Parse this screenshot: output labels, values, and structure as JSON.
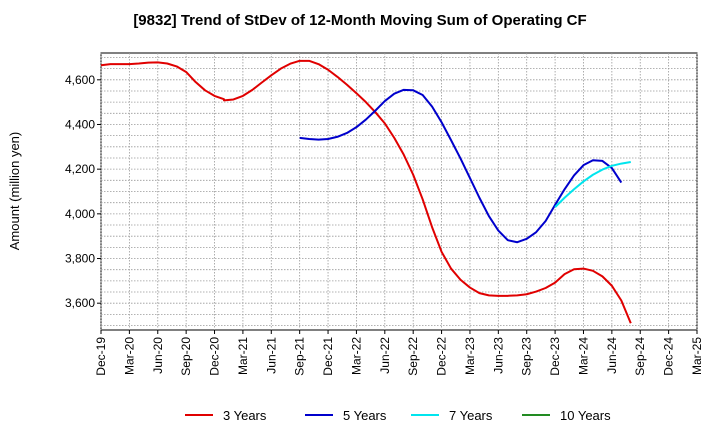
{
  "chart_data": {
    "type": "line",
    "title": "[9832]  Trend of StDev of 12-Month Moving Sum of Operating CF",
    "xlabel": "",
    "ylabel": "Amount (million yen)",
    "ylim": [
      3480,
      4720
    ],
    "yticks": [
      3600,
      3800,
      4000,
      4200,
      4400,
      4600
    ],
    "ytick_labels": [
      "3,600",
      "3,800",
      "4,000",
      "4,200",
      "4,400",
      "4,600"
    ],
    "x_start": "2019-12",
    "x_end": "2025-03",
    "xtick_labels": [
      "Dec-19",
      "Mar-20",
      "Jun-20",
      "Sep-20",
      "Dec-20",
      "Mar-21",
      "Jun-21",
      "Sep-21",
      "Dec-21",
      "Mar-22",
      "Jun-22",
      "Sep-22",
      "Dec-22",
      "Mar-23",
      "Jun-23",
      "Sep-23",
      "Dec-23",
      "Mar-24",
      "Jun-24",
      "Sep-24",
      "Dec-24",
      "Mar-25"
    ],
    "grid": true,
    "legend_position": "bottom",
    "series": [
      {
        "name": "3 Years",
        "color": "#e00000",
        "points": [
          [
            "2019-12",
            4665
          ],
          [
            "2020-01",
            4670
          ],
          [
            "2020-02",
            4670
          ],
          [
            "2020-03",
            4670
          ],
          [
            "2020-04",
            4673
          ],
          [
            "2020-05",
            4677
          ],
          [
            "2020-06",
            4678
          ],
          [
            "2020-07",
            4673
          ],
          [
            "2020-08",
            4660
          ],
          [
            "2020-09",
            4635
          ],
          [
            "2020-10",
            4590
          ],
          [
            "2020-11",
            4553
          ],
          [
            "2020-12",
            4528
          ],
          [
            "2020-13",
            4513
          ],
          [
            "2021-01",
            4508
          ],
          [
            "2021-02",
            4512
          ],
          [
            "2021-03",
            4528
          ],
          [
            "2021-04",
            4555
          ],
          [
            "2021-05",
            4588
          ],
          [
            "2021-06",
            4620
          ],
          [
            "2021-07",
            4650
          ],
          [
            "2021-08",
            4672
          ],
          [
            "2021-09",
            4685
          ],
          [
            "2021-10",
            4685
          ],
          [
            "2021-11",
            4670
          ],
          [
            "2021-12",
            4645
          ],
          [
            "2022-01",
            4613
          ],
          [
            "2022-02",
            4578
          ],
          [
            "2022-03",
            4540
          ],
          [
            "2022-04",
            4500
          ],
          [
            "2022-05",
            4455
          ],
          [
            "2022-06",
            4405
          ],
          [
            "2022-07",
            4340
          ],
          [
            "2022-08",
            4265
          ],
          [
            "2022-09",
            4175
          ],
          [
            "2022-10",
            4065
          ],
          [
            "2022-11",
            3940
          ],
          [
            "2022-12",
            3830
          ],
          [
            "2023-01",
            3755
          ],
          [
            "2023-02",
            3705
          ],
          [
            "2023-03",
            3670
          ],
          [
            "2023-04",
            3645
          ],
          [
            "2023-05",
            3635
          ],
          [
            "2023-06",
            3633
          ],
          [
            "2023-07",
            3633
          ],
          [
            "2023-08",
            3635
          ],
          [
            "2023-09",
            3640
          ],
          [
            "2023-10",
            3652
          ],
          [
            "2023-11",
            3668
          ],
          [
            "2023-12",
            3692
          ],
          [
            "2024-01",
            3730
          ],
          [
            "2024-02",
            3752
          ],
          [
            "2024-03",
            3755
          ],
          [
            "2024-04",
            3745
          ],
          [
            "2024-05",
            3720
          ],
          [
            "2024-06",
            3678
          ],
          [
            "2024-07",
            3612
          ],
          [
            "2024-08",
            3510
          ]
        ]
      },
      {
        "name": "5 Years",
        "color": "#0000cc",
        "points": [
          [
            "2021-09",
            4340
          ],
          [
            "2021-10",
            4335
          ],
          [
            "2021-11",
            4332
          ],
          [
            "2021-12",
            4335
          ],
          [
            "2022-01",
            4345
          ],
          [
            "2022-02",
            4362
          ],
          [
            "2022-03",
            4388
          ],
          [
            "2022-04",
            4422
          ],
          [
            "2022-05",
            4462
          ],
          [
            "2022-06",
            4505
          ],
          [
            "2022-07",
            4538
          ],
          [
            "2022-08",
            4555
          ],
          [
            "2022-09",
            4553
          ],
          [
            "2022-10",
            4532
          ],
          [
            "2022-11",
            4480
          ],
          [
            "2022-12",
            4410
          ],
          [
            "2023-01",
            4330
          ],
          [
            "2023-02",
            4248
          ],
          [
            "2023-03",
            4160
          ],
          [
            "2023-04",
            4072
          ],
          [
            "2023-05",
            3990
          ],
          [
            "2023-06",
            3925
          ],
          [
            "2023-07",
            3882
          ],
          [
            "2023-08",
            3873
          ],
          [
            "2023-09",
            3888
          ],
          [
            "2023-10",
            3918
          ],
          [
            "2023-11",
            3968
          ],
          [
            "2023-12",
            4040
          ],
          [
            "2024-01",
            4110
          ],
          [
            "2024-02",
            4172
          ],
          [
            "2024-03",
            4218
          ],
          [
            "2024-04",
            4240
          ],
          [
            "2024-05",
            4237
          ],
          [
            "2024-06",
            4205
          ],
          [
            "2024-07",
            4140
          ]
        ]
      },
      {
        "name": "7 Years",
        "color": "#00e5ee",
        "points": [
          [
            "2023-12",
            4030
          ],
          [
            "2024-01",
            4072
          ],
          [
            "2024-02",
            4110
          ],
          [
            "2024-03",
            4145
          ],
          [
            "2024-04",
            4175
          ],
          [
            "2024-05",
            4198
          ],
          [
            "2024-06",
            4215
          ],
          [
            "2024-07",
            4225
          ],
          [
            "2024-08",
            4232
          ]
        ]
      },
      {
        "name": "10 Years",
        "color": "#228b22",
        "points": []
      }
    ]
  }
}
